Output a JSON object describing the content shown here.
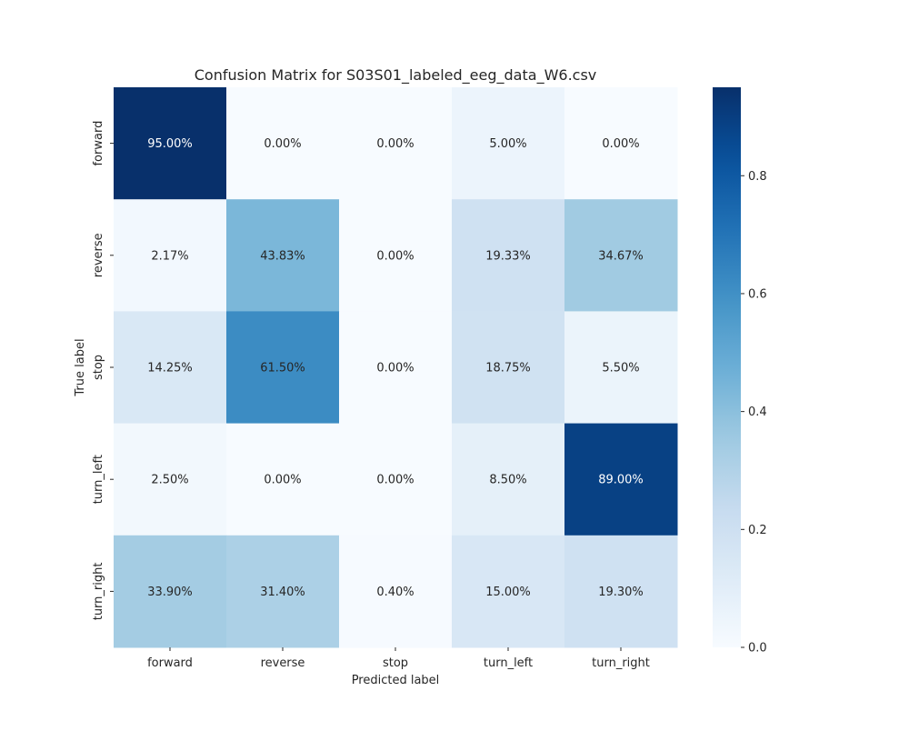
{
  "chart_data": {
    "type": "heatmap",
    "title": "Confusion Matrix for S03S01_labeled_eeg_data_W6.csv",
    "xlabel": "Predicted label",
    "ylabel": "True label",
    "x_categories": [
      "forward",
      "reverse",
      "stop",
      "turn_left",
      "turn_right"
    ],
    "y_categories": [
      "forward",
      "reverse",
      "stop",
      "turn_left",
      "turn_right"
    ],
    "values": [
      [
        0.95,
        0.0,
        0.0,
        0.05,
        0.0
      ],
      [
        0.0217,
        0.4383,
        0.0,
        0.1933,
        0.3467
      ],
      [
        0.1425,
        0.615,
        0.0,
        0.1875,
        0.055
      ],
      [
        0.025,
        0.0,
        0.0,
        0.085,
        0.89
      ],
      [
        0.339,
        0.314,
        0.004,
        0.15,
        0.193
      ]
    ],
    "annotations": [
      [
        "95.00%",
        "0.00%",
        "0.00%",
        "5.00%",
        "0.00%"
      ],
      [
        "2.17%",
        "43.83%",
        "0.00%",
        "19.33%",
        "34.67%"
      ],
      [
        "14.25%",
        "61.50%",
        "0.00%",
        "18.75%",
        "5.50%"
      ],
      [
        "2.50%",
        "0.00%",
        "0.00%",
        "8.50%",
        "89.00%"
      ],
      [
        "33.90%",
        "31.40%",
        "0.40%",
        "15.00%",
        "19.30%"
      ]
    ],
    "colormap": "Blues",
    "colorbar": {
      "range": [
        0.0,
        0.95
      ],
      "ticks": [
        0.0,
        0.2,
        0.4,
        0.6,
        0.8
      ],
      "tick_labels": [
        "0.0",
        "0.2",
        "0.4",
        "0.6",
        "0.8"
      ]
    }
  }
}
